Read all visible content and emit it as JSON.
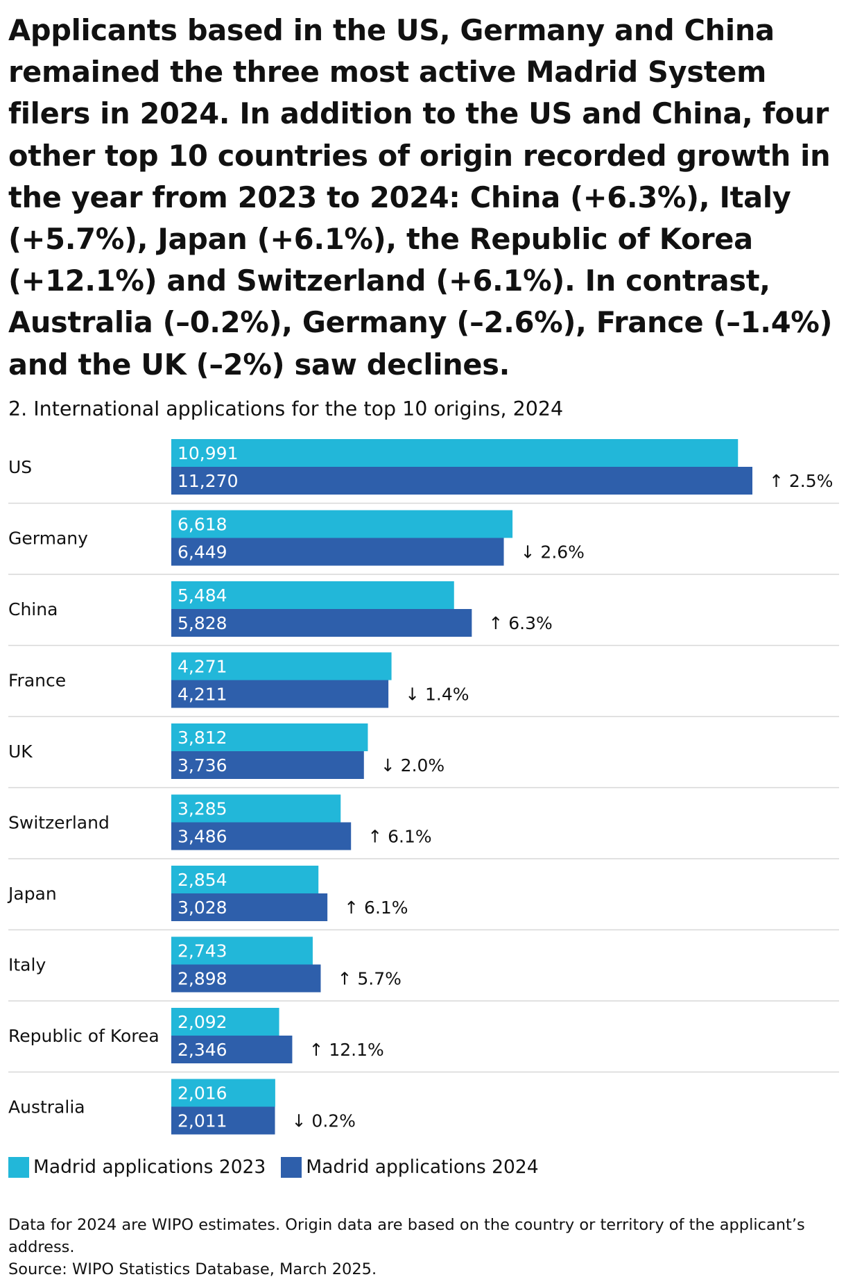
{
  "headline": "Applicants based in the US, Germany and China remained the three most active Madrid System filers in 2024. In addition to the US and China, four other top 10 countries of origin recorded growth in the year from 2023 to 2024: China (+6.3%), Italy (+5.7%), Japan (+6.1%), the Republic of Korea (+12.1%) and Switzerland (+6.1%). In contrast, Australia (–0.2%), Germany (–2.6%), France (–1.4%) and the UK (–2%) saw declines.",
  "footnote": {
    "note": "Data for 2024 are WIPO estimates. Origin data are based on the country or territory of the applicant’s address.",
    "source": "Source: WIPO Statistics Database, March 2025."
  },
  "colors": {
    "series_2023": "#22b7d9",
    "series_2024": "#2e5fab",
    "separator": "#d7d7d7"
  },
  "chart_data": {
    "type": "bar",
    "orientation": "horizontal",
    "title": "2. International applications for the top 10 origins, 2024",
    "categories": [
      "US",
      "Germany",
      "China",
      "France",
      "UK",
      "Switzerland",
      "Japan",
      "Italy",
      "Republic of Korea",
      "Australia"
    ],
    "series": [
      {
        "name": "Madrid applications 2023",
        "values": [
          10991,
          6618,
          5484,
          4271,
          3812,
          3285,
          2854,
          2743,
          2092,
          2016
        ],
        "labels": [
          "10,991",
          "6,618",
          "5,484",
          "4,271",
          "3,812",
          "3,285",
          "2,854",
          "2,743",
          "2,092",
          "2,016"
        ]
      },
      {
        "name": "Madrid applications 2024",
        "values": [
          11270,
          6449,
          5828,
          4211,
          3736,
          3486,
          3028,
          2898,
          2346,
          2011
        ],
        "labels": [
          "11,270",
          "6,449",
          "5,828",
          "4,211",
          "3,736",
          "3,486",
          "3,028",
          "2,898",
          "2,346",
          "2,011"
        ]
      }
    ],
    "growth": [
      {
        "direction": "up",
        "label": "↑ 2.5%"
      },
      {
        "direction": "down",
        "label": "↓ 2.6%"
      },
      {
        "direction": "up",
        "label": "↑ 6.3%"
      },
      {
        "direction": "down",
        "label": "↓ 1.4%"
      },
      {
        "direction": "down",
        "label": "↓ 2.0%"
      },
      {
        "direction": "up",
        "label": "↑ 6.1%"
      },
      {
        "direction": "up",
        "label": "↑ 6.1%"
      },
      {
        "direction": "up",
        "label": "↑ 5.7%"
      },
      {
        "direction": "up",
        "label": "↑ 12.1%"
      },
      {
        "direction": "down",
        "label": "↓ 0.2%"
      }
    ],
    "xlim": [
      0,
      11270
    ],
    "legend_position": "bottom-left"
  }
}
